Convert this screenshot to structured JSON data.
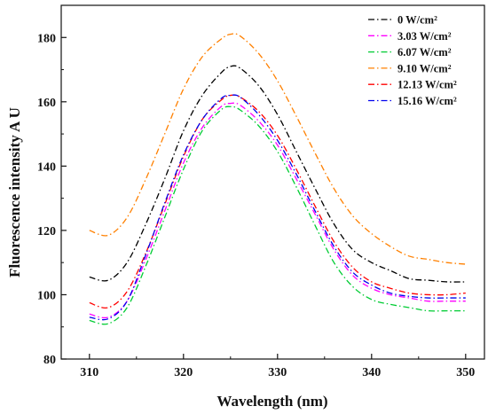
{
  "chart_data": {
    "type": "line",
    "title": "",
    "xlabel": "Wavelength (nm)",
    "ylabel": "Fluorescence intensity A U",
    "xlim": [
      307,
      352
    ],
    "ylim": [
      80,
      190
    ],
    "xticks": [
      310,
      320,
      330,
      340,
      350
    ],
    "yticks": [
      80,
      100,
      120,
      140,
      160,
      180
    ],
    "grid": false,
    "legend_position": "top-right",
    "x": [
      310,
      312,
      314,
      316,
      318,
      320,
      322,
      324,
      325,
      326,
      328,
      330,
      332,
      334,
      336,
      338,
      340,
      342,
      344,
      346,
      348,
      350
    ],
    "series": [
      {
        "name": "0 W/cm²",
        "color": "#000000",
        "values": [
          105.5,
          104.5,
          110.0,
          122.0,
          136.0,
          151.0,
          162.0,
          169.0,
          171.0,
          170.5,
          165.0,
          156.0,
          144.5,
          133.0,
          122.0,
          114.0,
          110.0,
          107.5,
          105.0,
          104.5,
          104.0,
          104.0
        ]
      },
      {
        "name": "3.03 W/cm²",
        "color": "#ff00ff",
        "values": [
          94.0,
          93.0,
          98.0,
          111.0,
          126.0,
          141.0,
          152.0,
          158.5,
          159.5,
          159.0,
          154.0,
          146.5,
          136.0,
          125.0,
          114.0,
          106.0,
          102.0,
          100.0,
          99.0,
          98.0,
          98.0,
          98.0
        ]
      },
      {
        "name": "6.07 W/cm²",
        "color": "#00cc33",
        "values": [
          92.0,
          91.0,
          96.0,
          109.0,
          124.0,
          139.0,
          151.0,
          157.5,
          158.5,
          157.5,
          152.5,
          144.5,
          133.5,
          121.5,
          110.0,
          102.5,
          98.5,
          97.0,
          96.0,
          95.0,
          95.0,
          95.0
        ]
      },
      {
        "name": "9.10 W/cm²",
        "color": "#ff8000",
        "values": [
          120.0,
          118.5,
          124.0,
          136.0,
          150.0,
          164.0,
          174.0,
          179.5,
          181.0,
          180.5,
          175.0,
          166.5,
          155.5,
          144.0,
          133.0,
          124.5,
          119.0,
          115.0,
          112.0,
          111.0,
          110.0,
          109.5
        ]
      },
      {
        "name": "12.13 W/cm²",
        "color": "#ff0000",
        "values": [
          97.5,
          96.0,
          101.0,
          113.0,
          128.0,
          143.0,
          154.5,
          160.5,
          162.0,
          161.5,
          157.0,
          149.5,
          139.0,
          127.5,
          116.5,
          108.5,
          104.0,
          102.0,
          100.5,
          100.0,
          100.0,
          100.5
        ]
      },
      {
        "name": "15.16 W/cm²",
        "color": "#0000ee",
        "values": [
          93.0,
          92.5,
          98.0,
          112.5,
          128.5,
          143.5,
          154.5,
          161.0,
          162.0,
          161.5,
          156.0,
          148.0,
          137.5,
          126.0,
          115.0,
          107.0,
          103.0,
          100.5,
          99.5,
          99.0,
          99.0,
          99.0
        ]
      }
    ]
  }
}
